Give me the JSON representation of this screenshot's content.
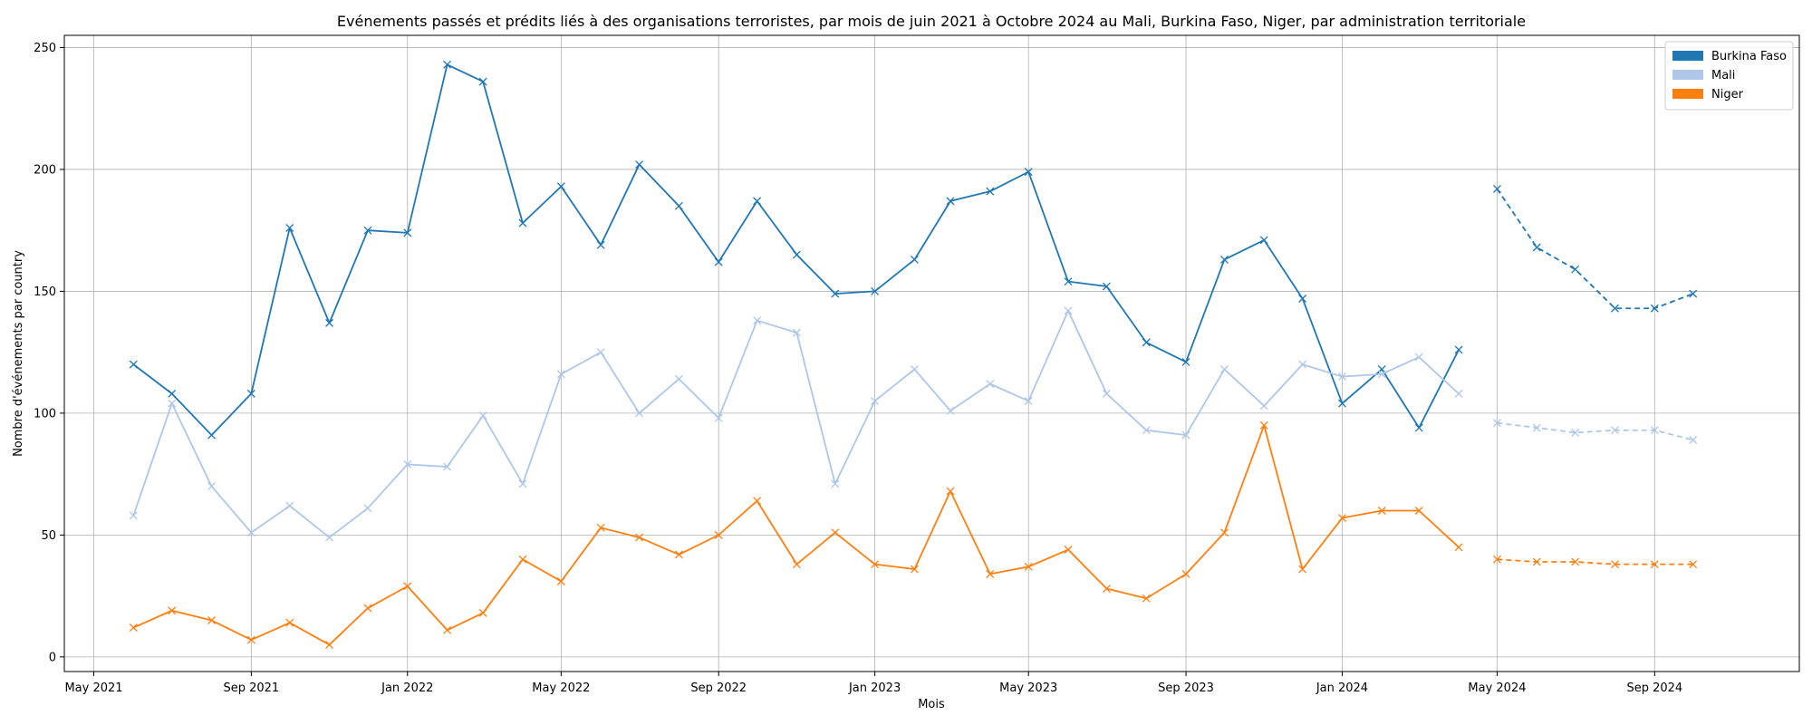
{
  "chart_data": {
    "type": "line",
    "title": "Evénements passés et prédits liés à des organisations terroristes, par mois de juin 2021 à Octobre 2024 au Mali, Burkina Faso, Niger, par administration territoriale",
    "xlabel": "Mois",
    "ylabel": "Nombre d'événements par country",
    "ylim": [
      -6,
      255
    ],
    "xlim": [
      "2021-04-08",
      "2024-12-23"
    ],
    "grid": true,
    "legend_position": "top-right",
    "x_ticks": [
      {
        "date": "2021-05-01",
        "label": "May 2021"
      },
      {
        "date": "2021-09-01",
        "label": "Sep 2021"
      },
      {
        "date": "2022-01-01",
        "label": "Jan 2022"
      },
      {
        "date": "2022-05-01",
        "label": "May 2022"
      },
      {
        "date": "2022-09-01",
        "label": "Sep 2022"
      },
      {
        "date": "2023-01-01",
        "label": "Jan 2023"
      },
      {
        "date": "2023-05-01",
        "label": "May 2023"
      },
      {
        "date": "2023-09-01",
        "label": "Sep 2023"
      },
      {
        "date": "2024-01-01",
        "label": "Jan 2024"
      },
      {
        "date": "2024-05-01",
        "label": "May 2024"
      },
      {
        "date": "2024-09-01",
        "label": "Sep 2024"
      }
    ],
    "y_ticks": [
      0,
      50,
      100,
      150,
      200,
      250
    ],
    "x_past": [
      "2021-06-01",
      "2021-07-01",
      "2021-08-01",
      "2021-09-01",
      "2021-10-01",
      "2021-11-01",
      "2021-12-01",
      "2022-01-01",
      "2022-02-01",
      "2022-03-01",
      "2022-04-01",
      "2022-05-01",
      "2022-06-01",
      "2022-07-01",
      "2022-08-01",
      "2022-09-01",
      "2022-10-01",
      "2022-11-01",
      "2022-12-01",
      "2023-01-01",
      "2023-02-01",
      "2023-03-01",
      "2023-04-01",
      "2023-05-01",
      "2023-06-01",
      "2023-07-01",
      "2023-08-01",
      "2023-09-01",
      "2023-10-01",
      "2023-11-01",
      "2023-12-01",
      "2024-01-01",
      "2024-02-01",
      "2024-03-01",
      "2024-04-01"
    ],
    "x_predicted": [
      "2024-05-01",
      "2024-06-01",
      "2024-07-01",
      "2024-08-01",
      "2024-09-01",
      "2024-10-01"
    ],
    "series": [
      {
        "name": "Burkina Faso",
        "color": "#1f77b4",
        "past": [
          120,
          108,
          91,
          108,
          176,
          137,
          175,
          174,
          243,
          236,
          178,
          193,
          169,
          202,
          185,
          162,
          187,
          165,
          149,
          150,
          163,
          187,
          191,
          199,
          154,
          152,
          129,
          121,
          163,
          171,
          147,
          104,
          118,
          94,
          126
        ],
        "predicted": [
          192,
          168,
          159,
          143,
          143,
          149
        ]
      },
      {
        "name": "Mali",
        "color": "#aec7e8",
        "past": [
          58,
          104,
          70,
          51,
          62,
          49,
          61,
          79,
          78,
          99,
          71,
          116,
          125,
          100,
          114,
          98,
          138,
          133,
          71,
          105,
          118,
          101,
          112,
          105,
          142,
          108,
          93,
          91,
          118,
          103,
          120,
          115,
          116,
          123,
          108
        ],
        "predicted": [
          96,
          94,
          92,
          93,
          93,
          89
        ]
      },
      {
        "name": "Niger",
        "color": "#ff7f0e",
        "past": [
          12,
          19,
          15,
          7,
          14,
          5,
          20,
          29,
          11,
          18,
          40,
          31,
          53,
          49,
          42,
          50,
          64,
          38,
          51,
          38,
          36,
          68,
          34,
          37,
          44,
          28,
          24,
          34,
          51,
          95,
          36,
          57,
          60,
          60,
          45
        ],
        "predicted": [
          40,
          39,
          39,
          38,
          38,
          38
        ]
      }
    ]
  }
}
